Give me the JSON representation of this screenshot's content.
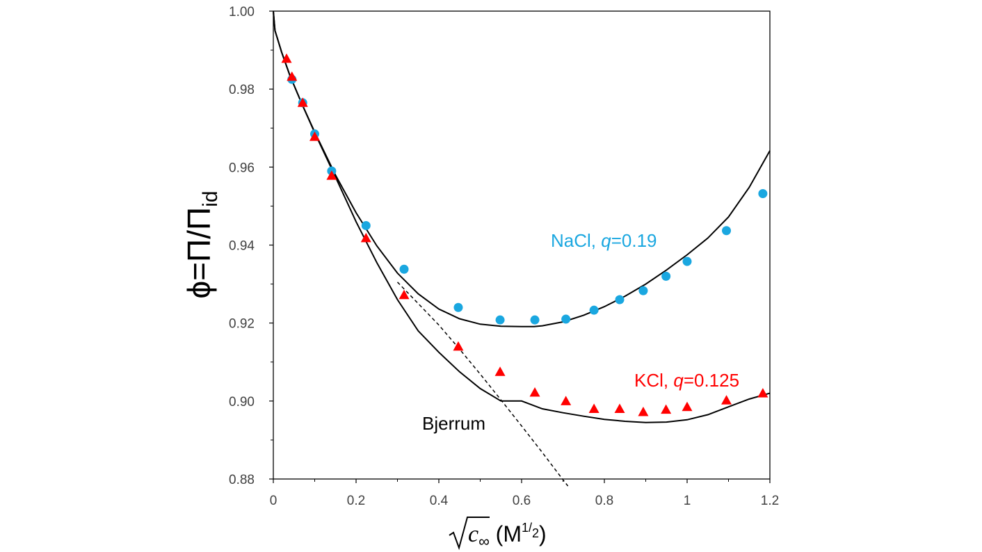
{
  "chart_data": {
    "type": "scatter",
    "title": "",
    "xlabel_parts": {
      "var": "c",
      "sub": "∞",
      "unit_open": " (M",
      "exp_num": "1",
      "exp_slash": "/",
      "exp_den": "2",
      "unit_close": ")"
    },
    "ylabel_parts": {
      "phi": "ϕ",
      "eq": "=",
      "pi1": "Π",
      "slash": "/",
      "pi2": "Π",
      "sub": "id"
    },
    "xlim": [
      0,
      1.2
    ],
    "ylim": [
      0.88,
      1.0
    ],
    "xticks": [
      0,
      0.2,
      0.4,
      0.6,
      0.8,
      1,
      1.2
    ],
    "yticks": [
      0.88,
      0.9,
      0.92,
      0.94,
      0.96,
      0.98,
      1.0
    ],
    "xtick_labels": [
      "0",
      "0.2",
      "0.4",
      "0.6",
      "0.8",
      "1",
      "1.2"
    ],
    "ytick_labels": [
      "0.88",
      "0.90",
      "0.92",
      "0.94",
      "0.96",
      "0.98",
      "1.00"
    ],
    "series": [
      {
        "name": "NaCl",
        "marker": "circle",
        "color": "#1aa7e0",
        "label_prefix": "NaCl, ",
        "label_q": "q",
        "label_value": "=0.19",
        "x": [
          0.045,
          0.071,
          0.1,
          0.141,
          0.224,
          0.316,
          0.447,
          0.548,
          0.632,
          0.707,
          0.775,
          0.837,
          0.894,
          0.949,
          1.0,
          1.095,
          1.183
        ],
        "y": [
          0.9825,
          0.9765,
          0.9685,
          0.959,
          0.945,
          0.9338,
          0.924,
          0.9208,
          0.9208,
          0.921,
          0.9233,
          0.926,
          0.9283,
          0.932,
          0.9358,
          0.9437,
          0.9532
        ]
      },
      {
        "name": "KCl",
        "marker": "triangle",
        "color": "#ff0000",
        "label_prefix": "KCl, ",
        "label_q": "q",
        "label_value": "=0.125",
        "x": [
          0.032,
          0.045,
          0.071,
          0.1,
          0.141,
          0.224,
          0.316,
          0.447,
          0.548,
          0.632,
          0.707,
          0.775,
          0.837,
          0.894,
          0.949,
          1.0,
          1.095,
          1.183
        ],
        "y": [
          0.9878,
          0.9832,
          0.9765,
          0.9678,
          0.9578,
          0.9418,
          0.9272,
          0.914,
          0.9075,
          0.9022,
          0.9,
          0.898,
          0.898,
          0.8972,
          0.8978,
          0.8985,
          0.9002,
          0.902
        ]
      }
    ],
    "curves": [
      {
        "name": "NaCl fit",
        "style": "solid",
        "color": "#000000",
        "x": [
          0,
          0.004,
          0.01,
          0.02,
          0.04,
          0.07,
          0.1,
          0.15,
          0.2,
          0.25,
          0.3,
          0.35,
          0.4,
          0.45,
          0.5,
          0.55,
          0.6,
          0.63,
          0.65,
          0.7,
          0.75,
          0.8,
          0.85,
          0.9,
          0.95,
          1.0,
          1.05,
          1.1,
          1.15,
          1.2
        ],
        "y": [
          1.0,
          0.995,
          0.993,
          0.9895,
          0.9835,
          0.976,
          0.969,
          0.958,
          0.9483,
          0.9398,
          0.9328,
          0.9275,
          0.9236,
          0.9211,
          0.9197,
          0.9192,
          0.9191,
          0.9191,
          0.9193,
          0.9203,
          0.922,
          0.9242,
          0.9269,
          0.93,
          0.9336,
          0.9375,
          0.9418,
          0.9472,
          0.9548,
          0.9642
        ]
      },
      {
        "name": "KCl fit",
        "style": "solid",
        "color": "#000000",
        "x": [
          0,
          0.004,
          0.01,
          0.02,
          0.04,
          0.07,
          0.1,
          0.15,
          0.2,
          0.25,
          0.3,
          0.35,
          0.4,
          0.45,
          0.5,
          0.55,
          0.6,
          0.65,
          0.7,
          0.75,
          0.8,
          0.85,
          0.9,
          0.95,
          1.0,
          1.05,
          1.1,
          1.15,
          1.2
        ],
        "y": [
          1.0,
          0.995,
          0.993,
          0.9895,
          0.9835,
          0.976,
          0.9688,
          0.9575,
          0.946,
          0.9355,
          0.926,
          0.918,
          0.9125,
          0.9075,
          0.9032,
          0.9,
          0.9,
          0.898,
          0.897,
          0.8961,
          0.8953,
          0.8948,
          0.8945,
          0.8946,
          0.8952,
          0.8965,
          0.8985,
          0.9005,
          0.902
        ]
      },
      {
        "name": "Bjerrum",
        "style": "dashed",
        "color": "#000000",
        "x": [
          0.3,
          0.35,
          0.4,
          0.45,
          0.5,
          0.55,
          0.6,
          0.65,
          0.7,
          0.712
        ],
        "y": [
          0.9305,
          0.925,
          0.9195,
          0.9133,
          0.9069,
          0.9003,
          0.8936,
          0.8868,
          0.8798,
          0.8782
        ]
      }
    ],
    "annotations": {
      "bjerrum": "Bjerrum"
    }
  }
}
